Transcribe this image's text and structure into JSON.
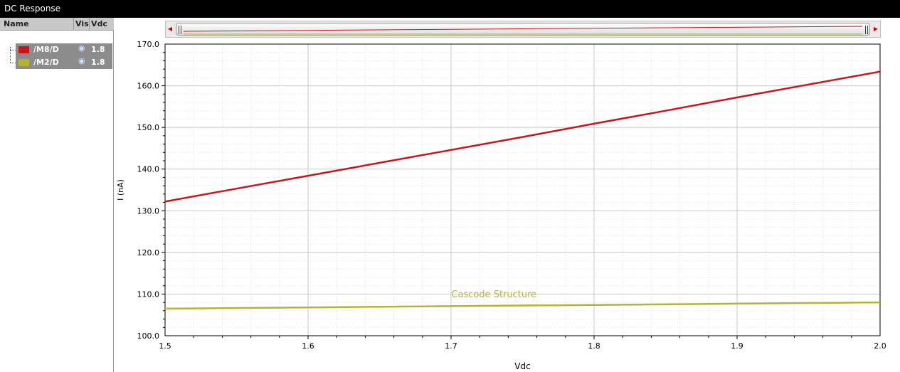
{
  "window": {
    "title": "DC Response"
  },
  "panel": {
    "columns": {
      "name": "Name",
      "vis": "Vis",
      "value": "Vdc"
    },
    "signals": [
      {
        "name": "/M8/D",
        "value": "1.8",
        "color": "#c8141e",
        "visible_icon": "eye-icon"
      },
      {
        "name": "/M2/D",
        "value": "1.8",
        "color": "#b4b432",
        "visible_icon": "eye-icon"
      }
    ]
  },
  "scrollbar": {
    "left_arrow_icon": "arrow-left-icon",
    "right_arrow_icon": "arrow-right-icon"
  },
  "chart_data": {
    "type": "line",
    "xlabel": "Vdc",
    "ylabel": "I (nA)",
    "xlim": [
      1.5,
      2.0
    ],
    "ylim": [
      100.0,
      170.0
    ],
    "xticks": [
      "1.5",
      "1.6",
      "1.7",
      "1.8",
      "1.9",
      "2.0"
    ],
    "yticks": [
      "100.0",
      "110.0",
      "120.0",
      "130.0",
      "140.0",
      "150.0",
      "160.0",
      "170.0"
    ],
    "grid": true,
    "annotation": {
      "text": "Cascode Structure",
      "x": 1.73,
      "y": 109.2
    },
    "series": [
      {
        "name": "/M8/D",
        "color": "#c8141e",
        "x": [
          1.5,
          1.55,
          1.6,
          1.65,
          1.7,
          1.75,
          1.8,
          1.85,
          1.9,
          1.95,
          2.0
        ],
        "y": [
          132.2,
          135.3,
          138.4,
          141.5,
          144.6,
          147.7,
          150.9,
          154.0,
          157.2,
          160.3,
          163.4
        ]
      },
      {
        "name": "/M2/D",
        "color": "#b4b432",
        "x": [
          1.5,
          1.6,
          1.7,
          1.8,
          1.9,
          2.0
        ],
        "y": [
          106.5,
          106.8,
          107.1,
          107.4,
          107.7,
          108.0
        ]
      }
    ]
  }
}
